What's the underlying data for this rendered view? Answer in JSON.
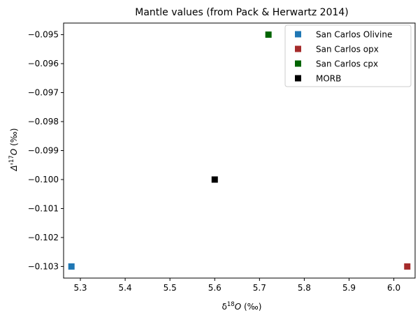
{
  "chart_data": {
    "type": "scatter",
    "title": "Mantle values (from Pack & Herwartz 2014)",
    "xlabel": {
      "prefix": "δ",
      "sup": "18",
      "main": "O",
      "suffix": " (‰)"
    },
    "ylabel": {
      "prefix": "Δ'",
      "sup": "17",
      "main": "O",
      "suffix": " (‰)"
    },
    "xlim": [
      5.2625,
      6.0475
    ],
    "ylim": [
      -0.1034,
      -0.0946
    ],
    "x_ticks": [
      "5.3",
      "5.4",
      "5.5",
      "5.6",
      "5.7",
      "5.8",
      "5.9",
      "6.0"
    ],
    "x_tick_values": [
      5.3,
      5.4,
      5.5,
      5.6,
      5.7,
      5.8,
      5.9,
      6.0
    ],
    "y_ticks": [
      "−0.095",
      "−0.096",
      "−0.097",
      "−0.098",
      "−0.099",
      "−0.100",
      "−0.101",
      "−0.102",
      "−0.103"
    ],
    "y_tick_values": [
      -0.095,
      -0.096,
      -0.097,
      -0.098,
      -0.099,
      -0.1,
      -0.101,
      -0.102,
      -0.103
    ],
    "marker": "square",
    "grid": false,
    "legend_position": "top-right",
    "series": [
      {
        "name": "San Carlos Olivine",
        "color": "#1f77b4",
        "x": [
          5.28
        ],
        "y": [
          -0.103
        ]
      },
      {
        "name": "San Carlos opx",
        "color": "#a52a2a",
        "x": [
          6.03
        ],
        "y": [
          -0.103
        ]
      },
      {
        "name": "San Carlos cpx",
        "color": "#006400",
        "x": [
          5.72
        ],
        "y": [
          -0.095
        ]
      },
      {
        "name": "MORB",
        "color": "#000000",
        "x": [
          5.6
        ],
        "y": [
          -0.1
        ]
      }
    ]
  }
}
